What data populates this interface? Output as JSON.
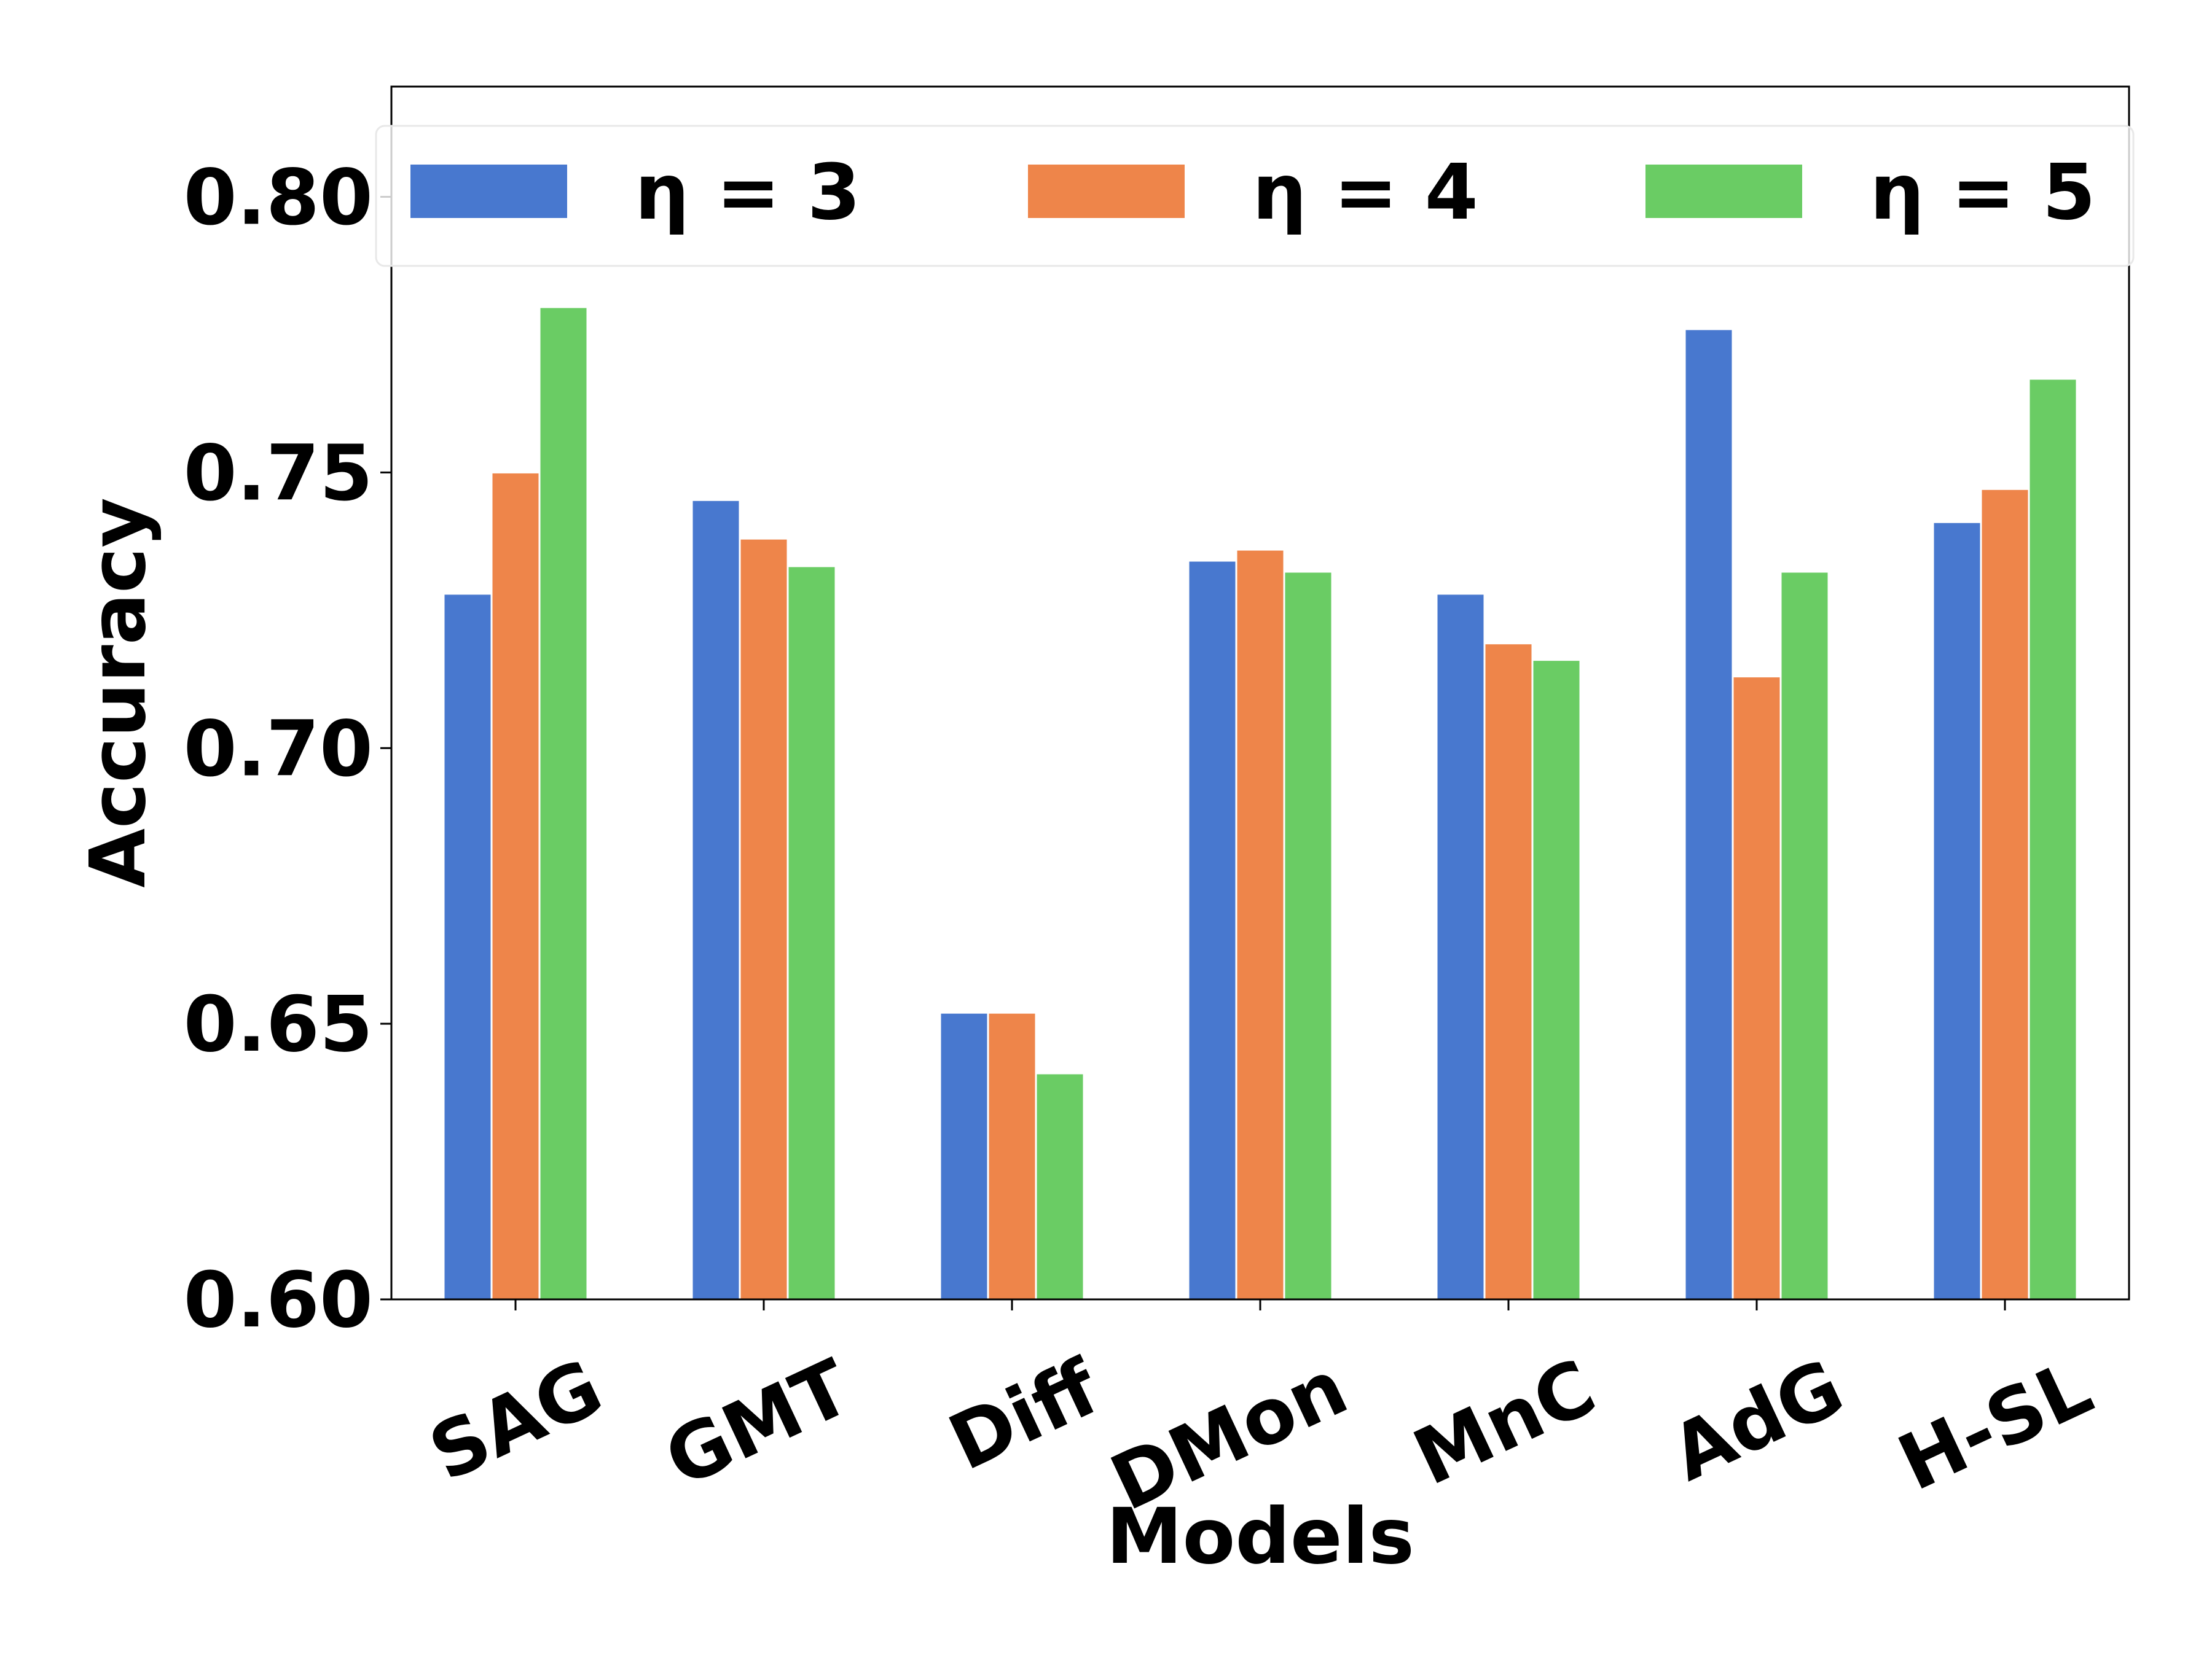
{
  "chart_data": {
    "type": "bar",
    "xlabel": "Models",
    "ylabel": "Accuracy",
    "categories": [
      "SAG",
      "GMT",
      "Diff",
      "DMon",
      "MnC",
      "AdG",
      "H-SL"
    ],
    "series": [
      {
        "name": "η = 3",
        "color": "#4878cf",
        "values": [
          0.728,
          0.745,
          0.652,
          0.734,
          0.728,
          0.776,
          0.741
        ]
      },
      {
        "name": "η = 4",
        "color": "#ee854a",
        "values": [
          0.75,
          0.738,
          0.652,
          0.736,
          0.719,
          0.713,
          0.747
        ]
      },
      {
        "name": "η = 5",
        "color": "#6acc64",
        "values": [
          0.78,
          0.733,
          0.641,
          0.732,
          0.716,
          0.732,
          0.767
        ]
      }
    ],
    "ylim": [
      0.6,
      0.82
    ],
    "yticks": [
      "0.60",
      "0.65",
      "0.70",
      "0.75",
      "0.80"
    ],
    "grid": false,
    "legend_position": "top",
    "legend_columns": 3
  }
}
